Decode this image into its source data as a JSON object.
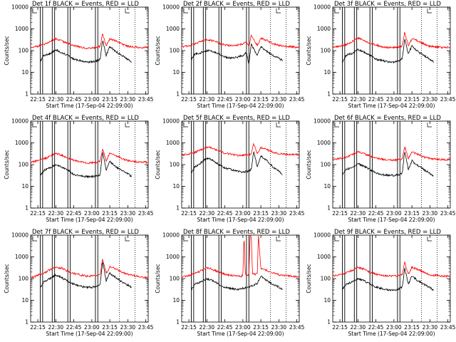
{
  "figure": {
    "legend_text": "BLACK = Events, RED = LLD",
    "x_tick_labels": [
      "22:15",
      "22:30",
      "22:45",
      "23:00",
      "23:15",
      "23:30",
      "23:45"
    ],
    "y_tick_labels": [
      "1",
      "10",
      "100",
      "1000",
      "10000"
    ],
    "ylabel": "Counts/sec",
    "xlabel": "Start Time (17-Sep-04 22:09:00)"
  },
  "colors": {
    "events": "#000000",
    "lld": "#ff0000",
    "axes": "#000000",
    "background": "#ffffff"
  },
  "chart_data": [
    {
      "type": "line",
      "title": "Det 1f BLACK = Events, RED = LLD",
      "xlabel": "Start Time (17-Sep-04 22:09:00)",
      "ylabel": "Counts/sec",
      "x_range": [
        "22:09",
        "23:47"
      ],
      "ylim": [
        1,
        10000
      ],
      "y_scale": "log",
      "series": [
        {
          "name": "Events",
          "color": "#000000",
          "x": [
            "22:17",
            "22:20",
            "22:25",
            "22:30",
            "22:35",
            "22:40",
            "22:45",
            "22:50",
            "22:55",
            "23:00",
            "23:05",
            "23:07",
            "23:09",
            "23:12",
            "23:15",
            "23:20",
            "23:25",
            "23:30",
            "23:33"
          ],
          "y": [
            30,
            60,
            70,
            110,
            80,
            60,
            40,
            35,
            30,
            30,
            35,
            40,
            300,
            60,
            150,
            90,
            60,
            40,
            30
          ]
        },
        {
          "name": "LLD",
          "color": "#ff0000",
          "x": [
            "22:09",
            "22:15",
            "22:20",
            "22:25",
            "22:30",
            "22:35",
            "22:40",
            "22:45",
            "22:50",
            "22:55",
            "23:00",
            "23:05",
            "23:07",
            "23:09",
            "23:12",
            "23:15",
            "23:20",
            "23:25",
            "23:30",
            "23:35",
            "23:40",
            "23:47"
          ],
          "y": [
            140,
            160,
            190,
            250,
            350,
            280,
            210,
            170,
            150,
            130,
            130,
            140,
            160,
            600,
            160,
            350,
            280,
            200,
            160,
            150,
            140,
            140
          ]
        }
      ]
    },
    {
      "type": "line",
      "title": "Det 2f BLACK = Events, RED = LLD",
      "xlabel": "Start Time (17-Sep-04 22:09:00)",
      "ylabel": "Counts/sec",
      "x_range": [
        "22:09",
        "23:47"
      ],
      "ylim": [
        1,
        10000
      ],
      "y_scale": "log",
      "series": [
        {
          "name": "Events",
          "color": "#000000",
          "x": [
            "22:17",
            "22:20",
            "22:25",
            "22:30",
            "22:35",
            "22:40",
            "22:45",
            "22:50",
            "22:55",
            "23:00",
            "23:03",
            "23:05",
            "23:07",
            "23:12",
            "23:15",
            "23:20",
            "23:25",
            "23:30",
            "23:33"
          ],
          "y": [
            40,
            70,
            80,
            100,
            90,
            70,
            50,
            45,
            50,
            60,
            80,
            25,
            200,
            60,
            150,
            90,
            60,
            45,
            35
          ]
        },
        {
          "name": "LLD",
          "color": "#ff0000",
          "x": [
            "22:09",
            "22:15",
            "22:20",
            "22:25",
            "22:30",
            "22:35",
            "22:40",
            "22:45",
            "22:50",
            "22:55",
            "23:00",
            "23:03",
            "23:05",
            "23:07",
            "23:12",
            "23:15",
            "23:20",
            "23:25",
            "23:30",
            "23:35",
            "23:40",
            "23:47"
          ],
          "y": [
            150,
            170,
            200,
            260,
            320,
            280,
            220,
            180,
            170,
            180,
            200,
            250,
            150,
            500,
            170,
            380,
            290,
            210,
            170,
            160,
            150,
            140
          ]
        }
      ]
    },
    {
      "type": "line",
      "title": "Det 3f BLACK = Events, RED = LLD",
      "xlabel": "Start Time (17-Sep-04 22:09:00)",
      "ylabel": "Counts/sec",
      "x_range": [
        "22:09",
        "23:47"
      ],
      "ylim": [
        1,
        10000
      ],
      "y_scale": "log",
      "series": [
        {
          "name": "Events",
          "color": "#000000",
          "x": [
            "22:17",
            "22:20",
            "22:25",
            "22:30",
            "22:35",
            "22:40",
            "22:45",
            "22:50",
            "22:55",
            "23:00",
            "23:05",
            "23:07",
            "23:09",
            "23:12",
            "23:15",
            "23:20",
            "23:25",
            "23:30",
            "23:33"
          ],
          "y": [
            30,
            60,
            75,
            110,
            85,
            60,
            40,
            35,
            30,
            30,
            35,
            45,
            350,
            70,
            160,
            90,
            60,
            40,
            30
          ]
        },
        {
          "name": "LLD",
          "color": "#ff0000",
          "x": [
            "22:09",
            "22:15",
            "22:20",
            "22:25",
            "22:30",
            "22:35",
            "22:40",
            "22:45",
            "22:50",
            "22:55",
            "23:00",
            "23:05",
            "23:07",
            "23:09",
            "23:12",
            "23:15",
            "23:20",
            "23:25",
            "23:30",
            "23:35",
            "23:40",
            "23:47"
          ],
          "y": [
            140,
            160,
            190,
            260,
            380,
            300,
            220,
            180,
            150,
            140,
            140,
            150,
            170,
            700,
            170,
            360,
            280,
            200,
            160,
            150,
            140,
            140
          ]
        }
      ]
    },
    {
      "type": "line",
      "title": "Det 4f BLACK = Events, RED = LLD",
      "xlabel": "Start Time (17-Sep-04 22:09:00)",
      "ylabel": "Counts/sec",
      "x_range": [
        "22:09",
        "23:47"
      ],
      "ylim": [
        1,
        10000
      ],
      "y_scale": "log",
      "series": [
        {
          "name": "Events",
          "color": "#000000",
          "x": [
            "22:17",
            "22:20",
            "22:25",
            "22:30",
            "22:35",
            "22:40",
            "22:45",
            "22:50",
            "22:55",
            "23:00",
            "23:05",
            "23:07",
            "23:09",
            "23:12",
            "23:15",
            "23:20",
            "23:25",
            "23:30",
            "23:33"
          ],
          "y": [
            30,
            55,
            70,
            100,
            75,
            55,
            35,
            30,
            28,
            28,
            30,
            35,
            400,
            55,
            140,
            80,
            55,
            38,
            28
          ]
        },
        {
          "name": "LLD",
          "color": "#ff0000",
          "x": [
            "22:09",
            "22:15",
            "22:20",
            "22:25",
            "22:30",
            "22:35",
            "22:40",
            "22:45",
            "22:50",
            "22:55",
            "23:00",
            "23:05",
            "23:07",
            "23:09",
            "23:12",
            "23:15",
            "23:20",
            "23:25",
            "23:30",
            "23:35",
            "23:40",
            "23:47"
          ],
          "y": [
            130,
            150,
            180,
            240,
            330,
            270,
            200,
            160,
            140,
            120,
            120,
            130,
            150,
            550,
            150,
            330,
            260,
            190,
            150,
            140,
            130,
            130
          ]
        }
      ]
    },
    {
      "type": "line",
      "title": "Det 5f BLACK = Events, RED = LLD",
      "xlabel": "Start Time (17-Sep-04 22:09:00)",
      "ylabel": "Counts/sec",
      "x_range": [
        "22:09",
        "23:47"
      ],
      "ylim": [
        1,
        10000
      ],
      "y_scale": "log",
      "series": [
        {
          "name": "Events",
          "color": "#000000",
          "x": [
            "22:17",
            "22:20",
            "22:25",
            "22:30",
            "22:35",
            "22:40",
            "22:45",
            "22:50",
            "22:55",
            "23:00",
            "23:05",
            "23:07",
            "23:09",
            "23:12",
            "23:15",
            "23:20",
            "23:25",
            "23:30",
            "23:33"
          ],
          "y": [
            40,
            80,
            120,
            200,
            160,
            100,
            70,
            60,
            50,
            45,
            50,
            60,
            400,
            80,
            250,
            150,
            80,
            50,
            35
          ]
        },
        {
          "name": "LLD",
          "color": "#ff0000",
          "x": [
            "22:09",
            "22:15",
            "22:20",
            "22:25",
            "22:30",
            "22:35",
            "22:40",
            "22:45",
            "22:50",
            "22:55",
            "23:00",
            "23:05",
            "23:07",
            "23:09",
            "23:12",
            "23:15",
            "23:20",
            "23:25",
            "23:30",
            "23:35",
            "23:40",
            "23:47"
          ],
          "y": [
            280,
            300,
            360,
            480,
            650,
            560,
            420,
            340,
            300,
            270,
            270,
            290,
            320,
            900,
            330,
            600,
            480,
            380,
            320,
            300,
            290,
            280
          ]
        }
      ]
    },
    {
      "type": "line",
      "title": "Det 6f BLACK = Events, RED = LLD",
      "xlabel": "Start Time (17-Sep-04 22:09:00)",
      "ylabel": "Counts/sec",
      "x_range": [
        "22:09",
        "23:47"
      ],
      "ylim": [
        1,
        10000
      ],
      "y_scale": "log",
      "series": [
        {
          "name": "Events",
          "color": "#000000",
          "x": [
            "22:17",
            "22:20",
            "22:25",
            "22:30",
            "22:35",
            "22:40",
            "22:45",
            "22:50",
            "22:55",
            "23:00",
            "23:05",
            "23:07",
            "23:09",
            "23:12",
            "23:15",
            "23:20",
            "23:25",
            "23:30",
            "23:33"
          ],
          "y": [
            35,
            60,
            75,
            110,
            85,
            60,
            40,
            35,
            32,
            32,
            35,
            40,
            450,
            60,
            150,
            90,
            60,
            40,
            30
          ]
        },
        {
          "name": "LLD",
          "color": "#ff0000",
          "x": [
            "22:09",
            "22:15",
            "22:20",
            "22:25",
            "22:30",
            "22:35",
            "22:40",
            "22:45",
            "22:50",
            "22:55",
            "23:00",
            "23:05",
            "23:07",
            "23:09",
            "23:12",
            "23:15",
            "23:20",
            "23:25",
            "23:30",
            "23:35",
            "23:40",
            "23:47"
          ],
          "y": [
            170,
            190,
            220,
            290,
            380,
            320,
            250,
            200,
            180,
            160,
            160,
            170,
            190,
            700,
            190,
            380,
            300,
            220,
            190,
            180,
            170,
            170
          ]
        }
      ]
    },
    {
      "type": "line",
      "title": "Det 7f BLACK = Events, RED = LLD",
      "xlabel": "Start Time (17-Sep-04 22:09:00)",
      "ylabel": "Counts/sec",
      "x_range": [
        "22:09",
        "23:47"
      ],
      "ylim": [
        1,
        10000
      ],
      "y_scale": "log",
      "series": [
        {
          "name": "Events",
          "color": "#000000",
          "x": [
            "22:17",
            "22:20",
            "22:25",
            "22:30",
            "22:35",
            "22:40",
            "22:45",
            "22:50",
            "22:55",
            "23:00",
            "23:05",
            "23:07",
            "23:09",
            "23:12",
            "23:15",
            "23:20",
            "23:25",
            "23:30",
            "23:33"
          ],
          "y": [
            40,
            70,
            100,
            150,
            110,
            75,
            55,
            45,
            40,
            40,
            45,
            55,
            600,
            80,
            180,
            110,
            70,
            50,
            40
          ]
        },
        {
          "name": "LLD",
          "color": "#ff0000",
          "x": [
            "22:09",
            "22:15",
            "22:20",
            "22:25",
            "22:30",
            "22:35",
            "22:40",
            "22:45",
            "22:50",
            "22:55",
            "23:00",
            "23:05",
            "23:07",
            "23:09",
            "23:12",
            "23:15",
            "23:20",
            "23:25",
            "23:30",
            "23:35",
            "23:40",
            "23:47"
          ],
          "y": [
            110,
            140,
            180,
            250,
            350,
            300,
            220,
            170,
            150,
            130,
            130,
            140,
            160,
            800,
            170,
            360,
            280,
            200,
            160,
            140,
            120,
            110
          ]
        }
      ]
    },
    {
      "type": "line",
      "title": "Det 8f BLACK = Events, RED = LLD",
      "xlabel": "Start Time (17-Sep-04 22:09:00)",
      "ylabel": "Counts/sec",
      "x_range": [
        "22:09",
        "23:47"
      ],
      "ylim": [
        1,
        10000
      ],
      "y_scale": "log",
      "series": [
        {
          "name": "Events",
          "color": "#000000",
          "x": [
            "22:17",
            "22:20",
            "22:25",
            "22:30",
            "22:35",
            "22:40",
            "22:45",
            "22:50",
            "22:55",
            "23:00",
            "23:05",
            "23:07",
            "23:12",
            "23:15",
            "23:20",
            "23:25",
            "23:30",
            "23:33"
          ],
          "y": [
            30,
            55,
            70,
            100,
            80,
            55,
            40,
            35,
            32,
            35,
            40,
            45,
            60,
            130,
            80,
            55,
            40,
            30
          ]
        },
        {
          "name": "LLD",
          "color": "#ff0000",
          "x": [
            "22:09",
            "22:15",
            "22:20",
            "22:25",
            "22:30",
            "22:35",
            "22:40",
            "22:45",
            "22:50",
            "22:55",
            "23:00",
            "23:01",
            "23:02",
            "23:05",
            "23:06",
            "23:07",
            "23:08",
            "23:12",
            "23:13",
            "23:15",
            "23:20",
            "23:25",
            "23:30",
            "23:35",
            "23:40",
            "23:47"
          ],
          "y": [
            120,
            140,
            170,
            230,
            320,
            260,
            200,
            160,
            140,
            130,
            130,
            10000,
            150,
            150,
            10000,
            10000,
            160,
            160,
            10000,
            300,
            240,
            180,
            150,
            140,
            130,
            120
          ]
        }
      ]
    },
    {
      "type": "line",
      "title": "Det 9f BLACK = Events, RED = LLD",
      "xlabel": "Start Time (17-Sep-04 22:09:00)",
      "ylabel": "Counts/sec",
      "x_range": [
        "22:09",
        "23:47"
      ],
      "ylim": [
        1,
        10000
      ],
      "y_scale": "log",
      "series": [
        {
          "name": "Events",
          "color": "#000000",
          "x": [
            "22:17",
            "22:20",
            "22:25",
            "22:30",
            "22:35",
            "22:40",
            "22:45",
            "22:50",
            "22:55",
            "23:00",
            "23:05",
            "23:07",
            "23:09",
            "23:12",
            "23:15",
            "23:20",
            "23:25",
            "23:30",
            "23:33"
          ],
          "y": [
            30,
            55,
            70,
            100,
            80,
            55,
            40,
            35,
            30,
            30,
            35,
            40,
            300,
            55,
            130,
            80,
            55,
            38,
            28
          ]
        },
        {
          "name": "LLD",
          "color": "#ff0000",
          "x": [
            "22:09",
            "22:15",
            "22:20",
            "22:25",
            "22:30",
            "22:35",
            "22:40",
            "22:45",
            "22:50",
            "22:55",
            "23:00",
            "23:05",
            "23:07",
            "23:09",
            "23:12",
            "23:15",
            "23:20",
            "23:25",
            "23:30",
            "23:35",
            "23:40",
            "23:47"
          ],
          "y": [
            130,
            150,
            180,
            240,
            330,
            270,
            200,
            160,
            140,
            130,
            130,
            140,
            160,
            600,
            160,
            330,
            260,
            190,
            150,
            140,
            130,
            130
          ]
        }
      ]
    }
  ]
}
